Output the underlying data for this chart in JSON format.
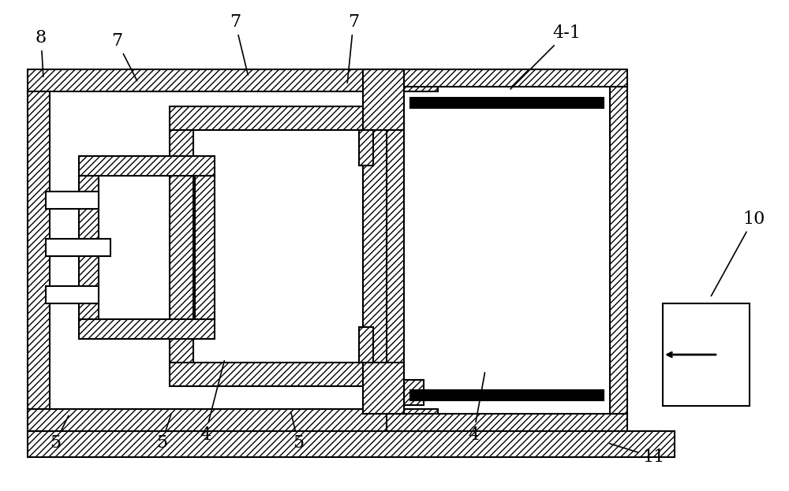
{
  "background_color": "#ffffff",
  "fig_width": 10.0,
  "fig_height": 6.23,
  "lw": 1.5,
  "hatch": "////",
  "label_fontsize": 16
}
